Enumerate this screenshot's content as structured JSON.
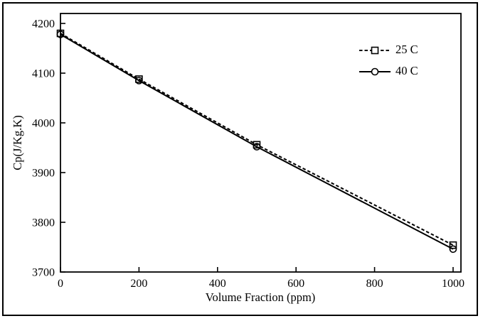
{
  "figure": {
    "background": "#ffffff",
    "border_color": "#000000",
    "ink_color": "#000000"
  },
  "chart_data": {
    "type": "line",
    "title": "",
    "xlabel": "Volume Fraction (ppm)",
    "ylabel": "Cp(J/Kg.K)",
    "x": [
      0,
      200,
      500,
      1000
    ],
    "xticks": [
      0,
      200,
      400,
      600,
      800,
      1000
    ],
    "yticks": [
      3700,
      3800,
      3900,
      4000,
      4100,
      4200
    ],
    "xlim": [
      0,
      1020
    ],
    "ylim": [
      3700,
      4220
    ],
    "grid": false,
    "legend_position": "upper-right-inside",
    "series": [
      {
        "name": "25 C",
        "marker": "square",
        "line_style": "dashed",
        "values": [
          4180,
          4088,
          3956,
          3754
        ]
      },
      {
        "name": "40 C",
        "marker": "circle",
        "line_style": "solid",
        "values": [
          4178,
          4085,
          3952,
          3746
        ]
      }
    ]
  }
}
